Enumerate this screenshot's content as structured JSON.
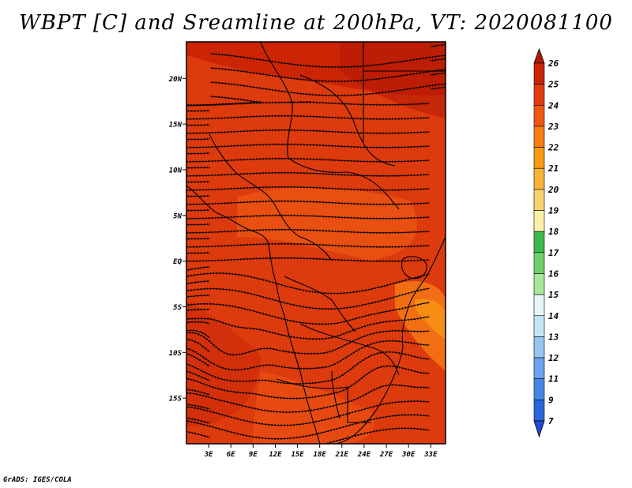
{
  "title": "WBPT [C] and Sreamline at 200hPa, VT: 2020081100",
  "footer": "GrADS: IGES/COLA",
  "map": {
    "lon_range": [
      0,
      35
    ],
    "lat_range": [
      -20,
      24
    ],
    "lat_ticks": [
      {
        "value": 20,
        "label": "20N"
      },
      {
        "value": 15,
        "label": "15N"
      },
      {
        "value": 10,
        "label": "10N"
      },
      {
        "value": 5,
        "label": "5N"
      },
      {
        "value": 0,
        "label": "EQ"
      },
      {
        "value": -5,
        "label": "5S"
      },
      {
        "value": -10,
        "label": "10S"
      },
      {
        "value": -15,
        "label": "15S"
      }
    ],
    "lon_ticks": [
      {
        "value": 3,
        "label": "3E"
      },
      {
        "value": 6,
        "label": "6E"
      },
      {
        "value": 9,
        "label": "9E"
      },
      {
        "value": 12,
        "label": "12E"
      },
      {
        "value": 15,
        "label": "15E"
      },
      {
        "value": 18,
        "label": "18E"
      },
      {
        "value": 21,
        "label": "21E"
      },
      {
        "value": 24,
        "label": "24E"
      },
      {
        "value": 27,
        "label": "27E"
      },
      {
        "value": 30,
        "label": "30E"
      },
      {
        "value": 33,
        "label": "33E"
      }
    ],
    "background_color": "#dd3a0e"
  },
  "colorbar": {
    "levels": [
      "26",
      "25",
      "24",
      "23",
      "22",
      "21",
      "20",
      "19",
      "18",
      "17",
      "16",
      "15",
      "14",
      "13",
      "12",
      "11",
      "9",
      "7"
    ],
    "colors": [
      "#b01804",
      "#c92406",
      "#e03c10",
      "#ee5812",
      "#f67c14",
      "#f89a14",
      "#f8b43a",
      "#f8d070",
      "#fbf0a8",
      "#3fb84a",
      "#70d06a",
      "#a8e698",
      "#e4f8f8",
      "#c4e6f8",
      "#96c6f0",
      "#6aa4ec",
      "#4486e4",
      "#2a66da",
      "#1e4cd0"
    ]
  }
}
